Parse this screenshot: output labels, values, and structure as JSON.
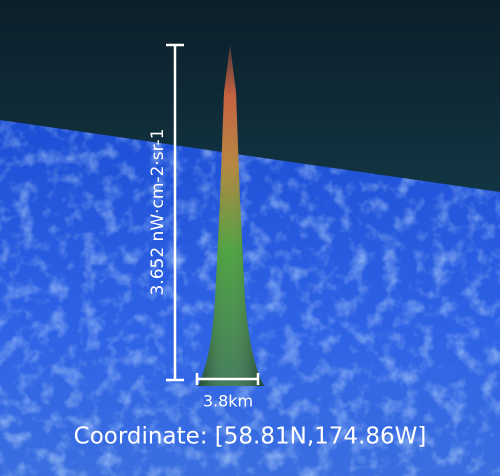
{
  "scale_label": "3.652 nW·cm-2·sr-1",
  "width_label": "3.8km",
  "coordinate": "Coordinate: [58.81N,174.86W]"
}
